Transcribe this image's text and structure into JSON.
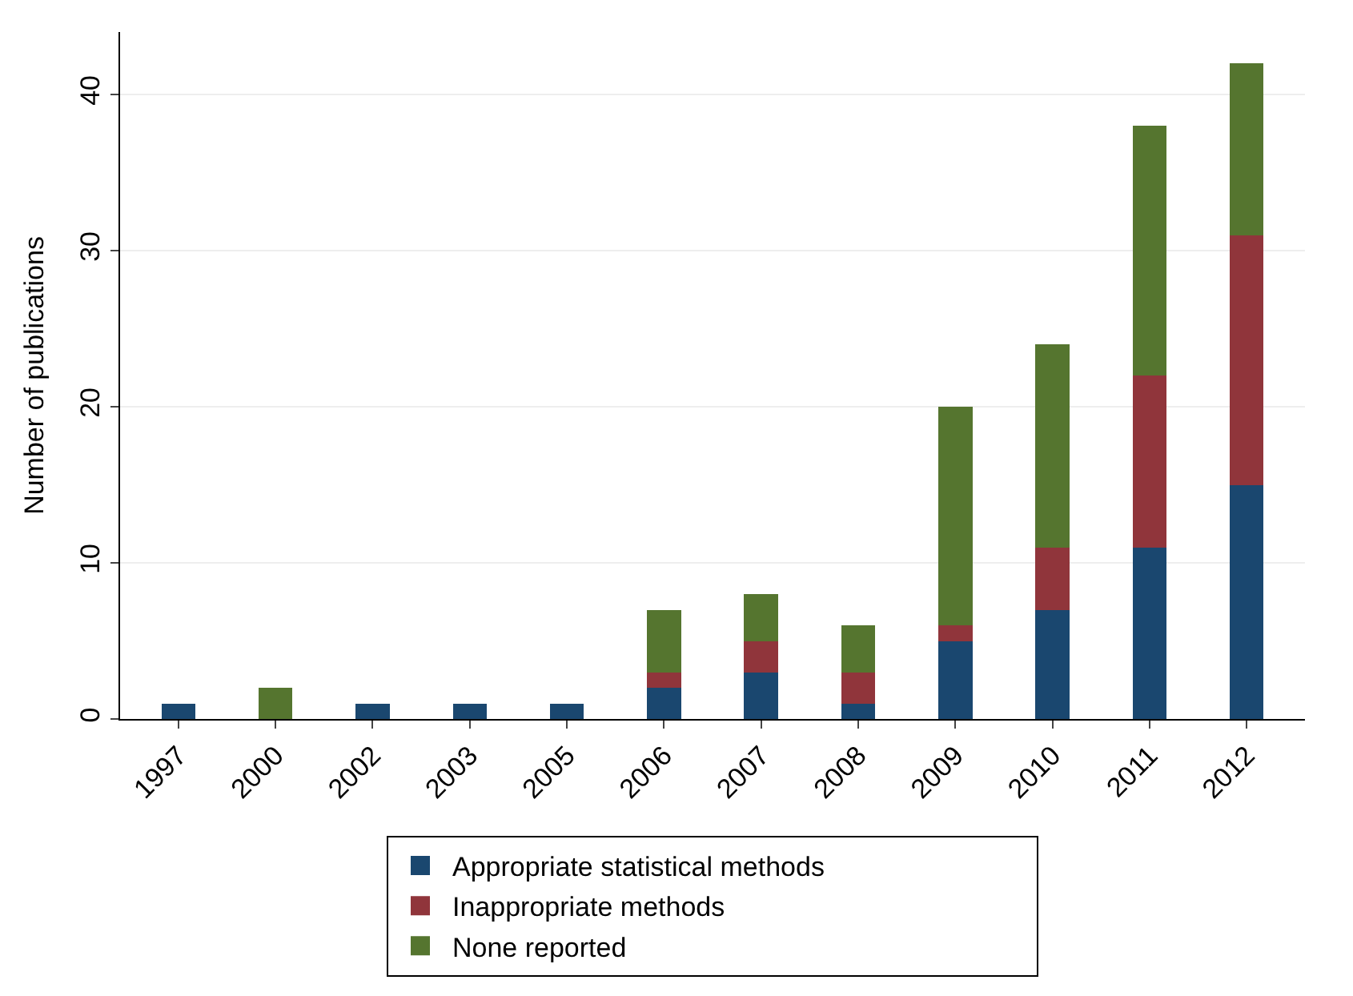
{
  "chart_data": {
    "type": "bar",
    "stacked": true,
    "ylabel": "Number of publications",
    "categories": [
      "1997",
      "2000",
      "2002",
      "2003",
      "2005",
      "2006",
      "2007",
      "2008",
      "2009",
      "2010",
      "2011",
      "2012"
    ],
    "series": [
      {
        "name": "Appropriate statistical methods",
        "color": "#1a476f",
        "values": [
          1,
          0,
          1,
          1,
          1,
          2,
          3,
          1,
          5,
          7,
          11,
          15
        ]
      },
      {
        "name": "Inappropriate methods",
        "color": "#90353b",
        "values": [
          0,
          0,
          0,
          0,
          0,
          1,
          2,
          2,
          1,
          4,
          11,
          16
        ]
      },
      {
        "name": "None reported",
        "color": "#55752f",
        "values": [
          0,
          2,
          0,
          0,
          0,
          4,
          3,
          3,
          14,
          13,
          16,
          11
        ]
      }
    ],
    "ylim": [
      0,
      44
    ],
    "yticks": [
      0,
      10,
      20,
      30,
      40
    ],
    "grid": "y",
    "legend": "bottom"
  }
}
